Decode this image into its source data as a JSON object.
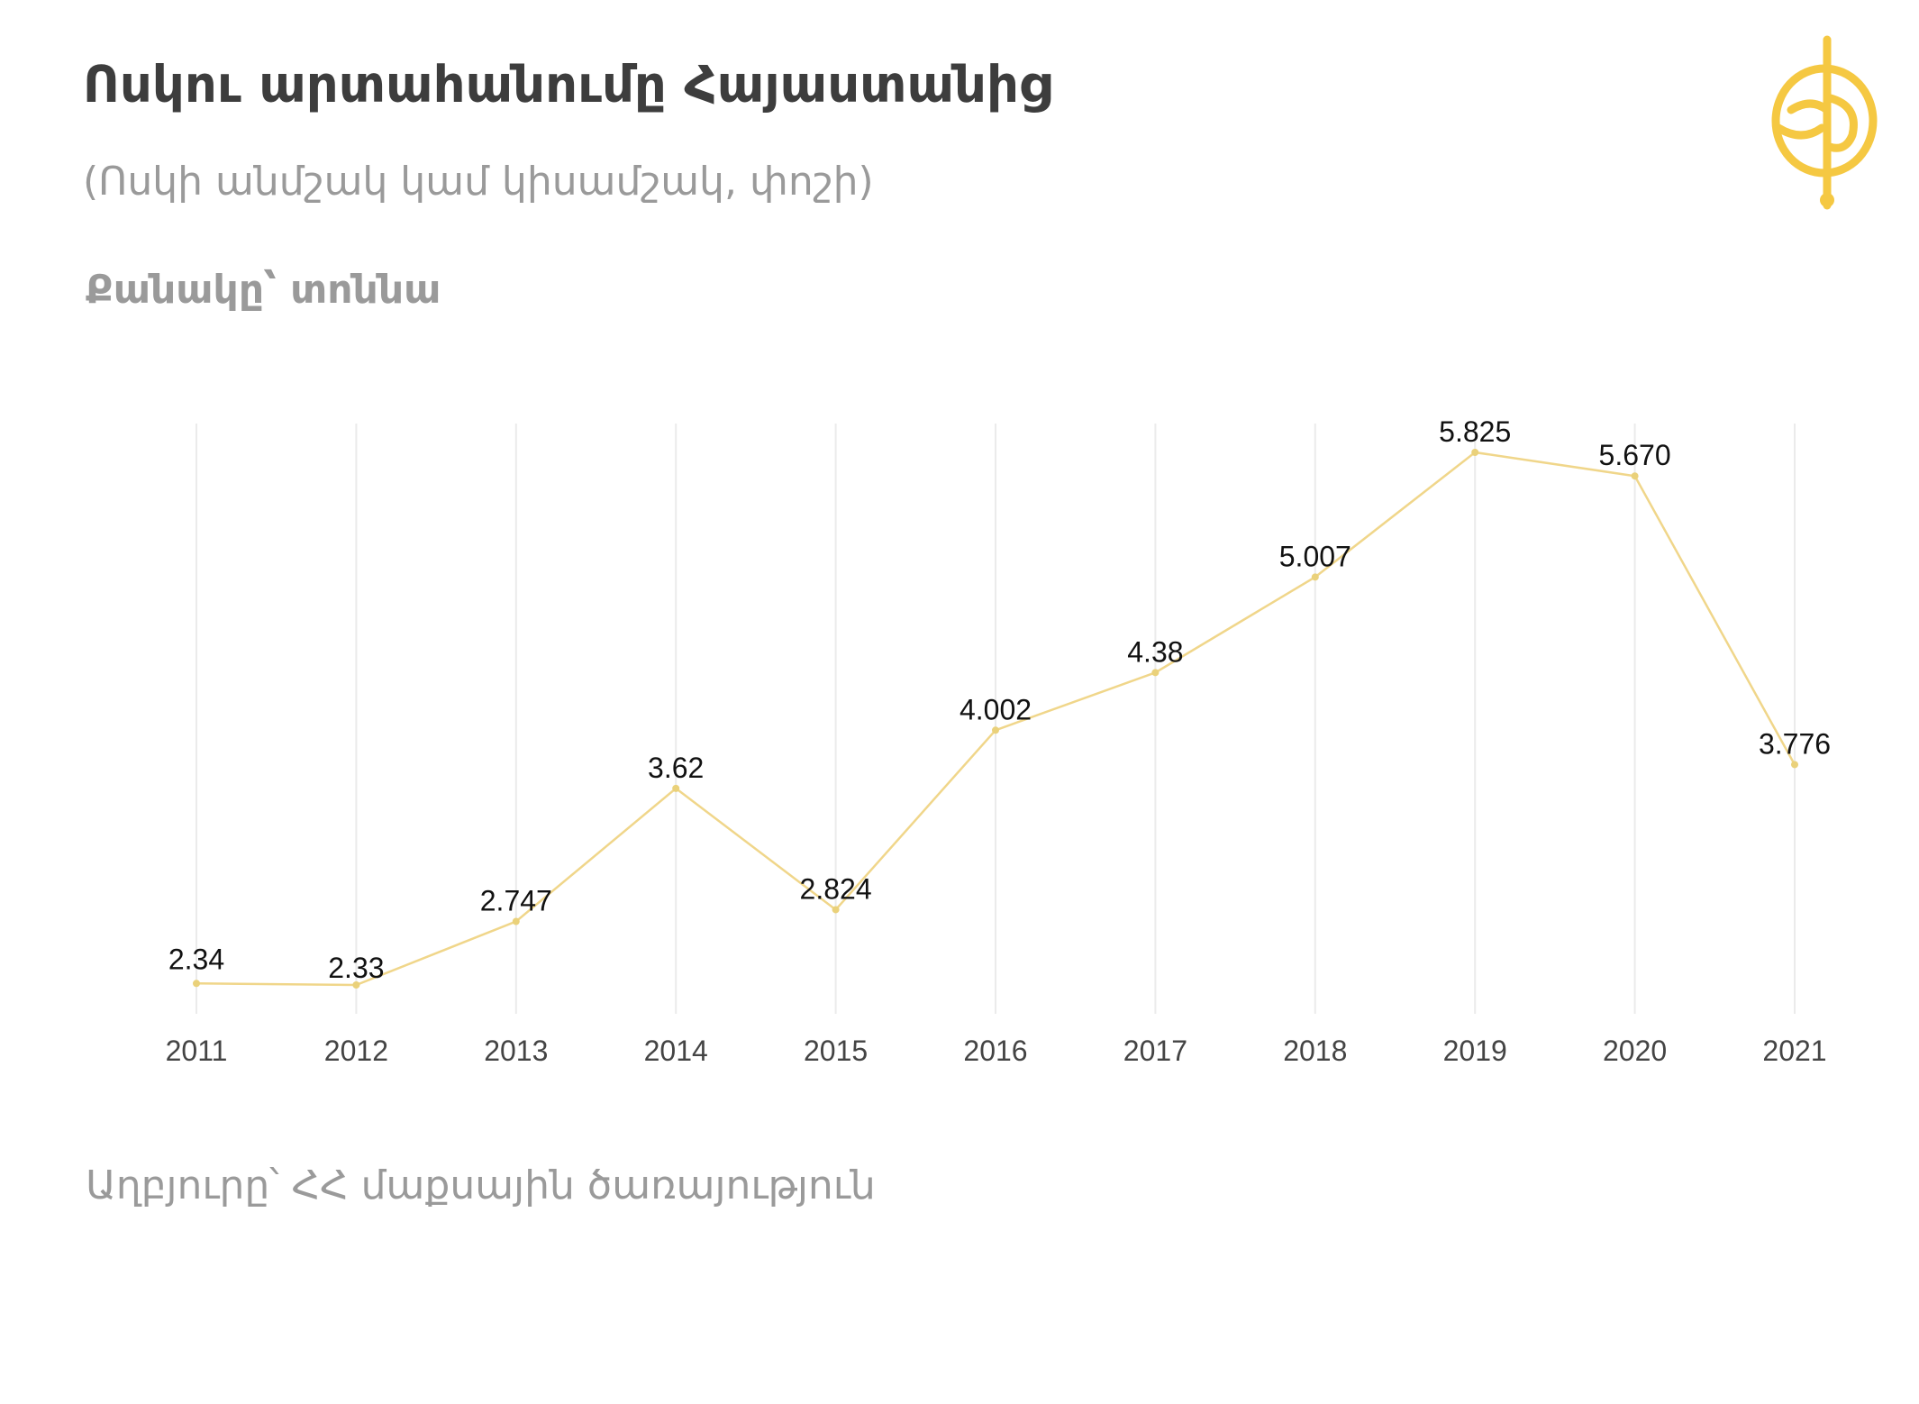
{
  "header": {
    "title": "Ոսկու արտահանումը Հայաստանից",
    "subtitle": "(Ոսկի անմշակ կամ կիսամշակ, փոշի)",
    "unit_label": "Քանակը՝ տոննա"
  },
  "footer": {
    "source": "Աղբյուրը՝ ՀՀ մաքսային ծառայություն"
  },
  "logo": {
    "icon": "gold-emblem-icon",
    "color": "#f5c842"
  },
  "chart_data": {
    "type": "line",
    "title": "Ոսկու արտահանումը Հայաստանից",
    "subtitle": "(Ոսկի անմշակ կամ կիսամշակ, փոշի)",
    "ylabel": "Քանակը՝ տոննա",
    "xlabel": "",
    "categories": [
      "2011",
      "2012",
      "2013",
      "2014",
      "2015",
      "2016",
      "2017",
      "2018",
      "2019",
      "2020",
      "2021"
    ],
    "series": [
      {
        "values": [
          2.34,
          2.33,
          2.747,
          3.62,
          2.824,
          4.002,
          4.38,
          5.007,
          5.825,
          5.67,
          3.776
        ],
        "labels": [
          "2.34",
          "2.33",
          "2.747",
          "3.62",
          "2.824",
          "4.002",
          "4.38",
          "5.007",
          "5.825",
          "5.670",
          "3.776"
        ],
        "color": "#f0d68a"
      }
    ],
    "ylim": [
      2.33,
      5.825
    ],
    "grid": "vertical",
    "legend": "none"
  }
}
